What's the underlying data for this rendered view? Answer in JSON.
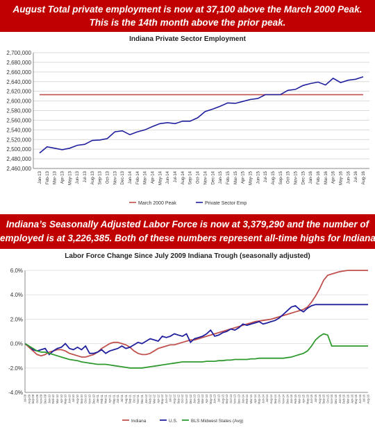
{
  "banner_top": {
    "line1": "August Total private employment is now at 37,100 above the March 2000 Peak.",
    "line2": "This is the 14th month above the prior peak."
  },
  "banner_mid": {
    "line1": "Indiana’s Seasonally Adjusted  Labor Force is now at 3,379,290 and the number of",
    "line2": "employed is at 3,226,385. Both of these numbers represent all-time highs for Indiana."
  },
  "colors": {
    "banner": "#c00000",
    "peak": "#c0504d",
    "private": "#1f1f9e",
    "indiana": "#c0504d",
    "us": "#1f1f9e",
    "midwest": "#2e9a2e"
  },
  "chart_data": [
    {
      "type": "line",
      "title": "Indiana Private Sector Employment",
      "ylim": [
        2460000,
        2700000
      ],
      "y_ticks": [
        "2,700,000",
        "2,680,000",
        "2,660,000",
        "2,640,000",
        "2,620,000",
        "2,600,000",
        "2,580,000",
        "2,560,000",
        "2,540,000",
        "2,520,000",
        "2,500,000",
        "2,480,000",
        "2,460,000"
      ],
      "categories": [
        "Jan-13",
        "Feb-13",
        "Mar-13",
        "Apr-13",
        "May-13",
        "Jun-13",
        "Jul-13",
        "Aug-13",
        "Sep-13",
        "Oct-13",
        "Nov-13",
        "Dec-13",
        "Jan-14",
        "Feb-14",
        "Mar-14",
        "Apr-14",
        "May-14",
        "Jun-14",
        "Jul-14",
        "Aug-14",
        "Sep-14",
        "Oct-14",
        "Nov-14",
        "Dec-14",
        "Jan-15",
        "Feb-15",
        "Mar-15",
        "Apr-15",
        "May-15",
        "Jun-15",
        "Jul-15",
        "Aug-15",
        "Sep-15",
        "Oct-15",
        "Nov-15",
        "Dec-15",
        "Jan-16",
        "Feb-16",
        "Mar-16",
        "Apr-16",
        "May-16",
        "Jun-16",
        "Jul-16",
        "Aug-16"
      ],
      "series": [
        {
          "name": "March 2000 Peak",
          "values": [
            2612900,
            2612900,
            2612900,
            2612900,
            2612900,
            2612900,
            2612900,
            2612900,
            2612900,
            2612900,
            2612900,
            2612900,
            2612900,
            2612900,
            2612900,
            2612900,
            2612900,
            2612900,
            2612900,
            2612900,
            2612900,
            2612900,
            2612900,
            2612900,
            2612900,
            2612900,
            2612900,
            2612900,
            2612900,
            2612900,
            2612900,
            2612900,
            2612900,
            2612900,
            2612900,
            2612900,
            2612900,
            2612900,
            2612900,
            2612900,
            2612900,
            2612900,
            2612900,
            2612900
          ]
        },
        {
          "name": "Private Sector Emp",
          "values": [
            2492000,
            2505000,
            2502000,
            2499000,
            2502000,
            2508000,
            2510000,
            2518000,
            2519000,
            2522000,
            2536000,
            2538000,
            2530000,
            2536000,
            2540000,
            2547000,
            2553000,
            2555000,
            2553000,
            2558000,
            2558000,
            2565000,
            2578000,
            2583000,
            2589000,
            2596000,
            2595000,
            2599000,
            2603000,
            2605000,
            2613000,
            2613000,
            2613000,
            2622000,
            2624000,
            2632000,
            2636000,
            2639000,
            2633000,
            2647000,
            2638000,
            2643000,
            2645000,
            2650000
          ]
        }
      ]
    },
    {
      "type": "line",
      "title": "Labor Force Change Since July 2009 Indiana Trough (seasonally adjusted)",
      "ylim": [
        -4,
        6
      ],
      "y_ticks": [
        "6.0%",
        "4.0%",
        "2.0%",
        "0.0%",
        "-2.0%",
        "-4.0%"
      ],
      "categories": [
        "Jul-09",
        "Aug-09",
        "Sep-09",
        "Oct-09",
        "Nov-09",
        "Dec-09",
        "Jan-10",
        "Feb-10",
        "Mar-10",
        "Apr-10",
        "May-10",
        "Jun-10",
        "Jul-10",
        "Aug-10",
        "Sep-10",
        "Oct-10",
        "Nov-10",
        "Dec-10",
        "Jan-11",
        "Feb-11",
        "Mar-11",
        "Apr-11",
        "May-11",
        "Jun-11",
        "Jul-11",
        "Aug-11",
        "Sep-11",
        "Oct-11",
        "Nov-11",
        "Dec-11",
        "Jan-12",
        "Feb-12",
        "Mar-12",
        "Apr-12",
        "May-12",
        "Jun-12",
        "Jul-12",
        "Aug-12",
        "Sep-12",
        "Oct-12",
        "Nov-12",
        "Dec-12",
        "Jan-13",
        "Feb-13",
        "Mar-13",
        "Apr-13",
        "May-13",
        "Jun-13",
        "Jul-13",
        "Aug-13",
        "Sep-13",
        "Oct-13",
        "Nov-13",
        "Dec-13",
        "Jan-14",
        "Feb-14",
        "Mar-14",
        "Apr-14",
        "May-14",
        "Jun-14",
        "Jul-14",
        "Aug-14",
        "Sep-14",
        "Oct-14",
        "Nov-14",
        "Dec-14",
        "Jan-15",
        "Feb-15",
        "Mar-15",
        "Apr-15",
        "May-15",
        "Jun-15",
        "Jul-15",
        "Aug-15",
        "Sep-15",
        "Oct-15",
        "Nov-15",
        "Dec-15",
        "Jan-16",
        "Feb-16",
        "Mar-16",
        "Apr-16",
        "May-16",
        "Jun-16",
        "Jul-16",
        "Aug-16"
      ],
      "series": [
        {
          "name": "Indiana",
          "values": [
            0,
            -0.3,
            -0.6,
            -0.9,
            -1.0,
            -0.9,
            -0.7,
            -0.6,
            -0.5,
            -0.5,
            -0.6,
            -0.8,
            -0.9,
            -1.0,
            -1.1,
            -1.1,
            -1.0,
            -0.9,
            -0.7,
            -0.4,
            -0.2,
            0.0,
            0.1,
            0.1,
            0.0,
            -0.1,
            -0.3,
            -0.6,
            -0.8,
            -0.9,
            -0.9,
            -0.8,
            -0.6,
            -0.4,
            -0.3,
            -0.2,
            -0.1,
            -0.1,
            0.0,
            0.1,
            0.2,
            0.3,
            0.3,
            0.4,
            0.5,
            0.6,
            0.7,
            0.8,
            0.9,
            1.0,
            1.1,
            1.2,
            1.3,
            1.4,
            1.5,
            1.6,
            1.7,
            1.8,
            1.85,
            1.9,
            1.95,
            2.0,
            2.1,
            2.2,
            2.3,
            2.4,
            2.5,
            2.6,
            2.7,
            2.8,
            3.0,
            3.4,
            3.9,
            4.5,
            5.2,
            5.6,
            5.7,
            5.8,
            5.9,
            5.95,
            6.0,
            6.0,
            6.0,
            6.0,
            6.0,
            6.0
          ]
        },
        {
          "name": "U.S.",
          "values": [
            0,
            -0.2,
            -0.5,
            -0.6,
            -0.5,
            -0.4,
            -0.9,
            -0.6,
            -0.4,
            -0.3,
            0.0,
            -0.4,
            -0.5,
            -0.3,
            -0.5,
            -0.2,
            -0.8,
            -0.8,
            -0.7,
            -0.5,
            -0.8,
            -0.6,
            -0.5,
            -0.4,
            -0.2,
            -0.4,
            -0.3,
            -0.1,
            0.1,
            0.0,
            0.2,
            0.4,
            0.3,
            0.2,
            0.6,
            0.5,
            0.6,
            0.8,
            0.7,
            0.6,
            0.8,
            0.1,
            0.4,
            0.5,
            0.6,
            0.8,
            1.1,
            0.6,
            0.7,
            0.9,
            1.0,
            1.2,
            1.1,
            1.3,
            1.6,
            1.5,
            1.6,
            1.7,
            1.8,
            1.6,
            1.7,
            1.8,
            1.9,
            2.1,
            2.4,
            2.7,
            3.0,
            3.1,
            2.8,
            2.6,
            2.9,
            3.1,
            3.2,
            3.2,
            3.2,
            3.2,
            3.2,
            3.2,
            3.2,
            3.2,
            3.2,
            3.2,
            3.2,
            3.2,
            3.2,
            3.2
          ]
        },
        {
          "name": "BLS Midwest States (Avg)",
          "values": [
            0,
            -0.2,
            -0.4,
            -0.6,
            -0.7,
            -0.7,
            -0.8,
            -0.9,
            -1.0,
            -1.1,
            -1.2,
            -1.3,
            -1.35,
            -1.4,
            -1.5,
            -1.55,
            -1.6,
            -1.65,
            -1.7,
            -1.7,
            -1.7,
            -1.75,
            -1.8,
            -1.85,
            -1.9,
            -1.95,
            -2.0,
            -2.0,
            -2.0,
            -2.0,
            -1.95,
            -1.9,
            -1.85,
            -1.8,
            -1.75,
            -1.7,
            -1.65,
            -1.6,
            -1.55,
            -1.5,
            -1.5,
            -1.5,
            -1.5,
            -1.5,
            -1.5,
            -1.45,
            -1.45,
            -1.45,
            -1.4,
            -1.4,
            -1.35,
            -1.35,
            -1.3,
            -1.3,
            -1.3,
            -1.3,
            -1.25,
            -1.25,
            -1.2,
            -1.2,
            -1.2,
            -1.2,
            -1.2,
            -1.2,
            -1.2,
            -1.15,
            -1.1,
            -1.0,
            -0.9,
            -0.8,
            -0.6,
            -0.2,
            0.3,
            0.6,
            0.8,
            0.7,
            -0.2,
            -0.2,
            -0.2,
            -0.2,
            -0.2,
            -0.2,
            -0.2,
            -0.2,
            -0.2,
            -0.2
          ]
        }
      ]
    }
  ]
}
